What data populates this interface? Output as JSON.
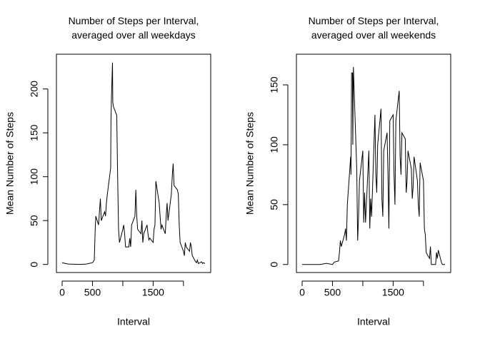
{
  "chart_data": [
    {
      "type": "line",
      "title": "Number of Steps per Interval,\naveraged over all weekdays",
      "x_label": "Interval",
      "y_label": "Mean Number of Steps",
      "color": "#000000",
      "x": [
        0,
        100,
        200,
        300,
        400,
        500,
        530,
        545,
        555,
        600,
        615,
        630,
        645,
        700,
        715,
        730,
        745,
        800,
        805,
        815,
        830,
        835,
        845,
        900,
        915,
        930,
        945,
        1000,
        1015,
        1030,
        1045,
        1100,
        1115,
        1130,
        1145,
        1200,
        1215,
        1230,
        1245,
        1300,
        1315,
        1330,
        1345,
        1400,
        1415,
        1430,
        1445,
        1500,
        1515,
        1530,
        1545,
        1600,
        1615,
        1630,
        1645,
        1700,
        1715,
        1730,
        1745,
        1800,
        1815,
        1830,
        1845,
        1900,
        1915,
        1930,
        1945,
        2000,
        2015,
        2030,
        2045,
        2100,
        2115,
        2130,
        2145,
        2200,
        2215,
        2230,
        2245,
        2300,
        2315,
        2330,
        2355
      ],
      "values": [
        2,
        0.5,
        0.3,
        0,
        0.5,
        2,
        5,
        40,
        55,
        45,
        60,
        75,
        50,
        60,
        55,
        70,
        80,
        110,
        165,
        195,
        230,
        185,
        180,
        170,
        100,
        40,
        25,
        40,
        45,
        35,
        20,
        20,
        30,
        20,
        45,
        55,
        85,
        55,
        40,
        35,
        50,
        25,
        35,
        45,
        35,
        28,
        30,
        25,
        40,
        45,
        95,
        70,
        55,
        40,
        45,
        35,
        55,
        70,
        50,
        80,
        100,
        115,
        90,
        85,
        80,
        45,
        25,
        15,
        10,
        25,
        20,
        15,
        25,
        20,
        10,
        3,
        2,
        5,
        1,
        3,
        1,
        2,
        1
      ],
      "xlim": [
        -94.2,
        2449.2
      ],
      "ylim": [
        -9.2,
        239.6
      ],
      "xticks": [
        0,
        500,
        {
          "value": 1000,
          "label": null
        },
        1500,
        {
          "value": 2000,
          "label": null
        }
      ],
      "yticks": [
        0,
        50,
        100,
        150,
        200
      ]
    },
    {
      "type": "line",
      "title": "Number of Steps per Interval,\naveraged over all weekends",
      "x_label": "Interval",
      "y_label": "Mean Number of Steps",
      "color": "#000000",
      "x": [
        0,
        100,
        200,
        300,
        400,
        500,
        530,
        600,
        615,
        630,
        645,
        700,
        715,
        730,
        745,
        800,
        805,
        815,
        830,
        835,
        845,
        900,
        915,
        930,
        945,
        1000,
        1015,
        1030,
        1045,
        1100,
        1115,
        1130,
        1145,
        1200,
        1215,
        1230,
        1245,
        1300,
        1315,
        1330,
        1345,
        1400,
        1415,
        1430,
        1445,
        1500,
        1515,
        1530,
        1545,
        1600,
        1615,
        1630,
        1645,
        1700,
        1715,
        1730,
        1745,
        1800,
        1815,
        1830,
        1845,
        1900,
        1915,
        1930,
        1945,
        2000,
        2015,
        2030,
        2045,
        2100,
        2115,
        2130,
        2145,
        2200,
        2215,
        2230,
        2245,
        2300,
        2315,
        2355
      ],
      "values": [
        0,
        0,
        0,
        0,
        1,
        0,
        2,
        3,
        10,
        20,
        15,
        25,
        30,
        20,
        50,
        90,
        75,
        160,
        160,
        100,
        165,
        80,
        20,
        40,
        70,
        95,
        35,
        60,
        35,
        95,
        30,
        55,
        40,
        125,
        75,
        60,
        100,
        130,
        55,
        40,
        95,
        110,
        75,
        30,
        120,
        125,
        75,
        50,
        120,
        145,
        90,
        75,
        110,
        105,
        60,
        70,
        95,
        80,
        55,
        65,
        90,
        70,
        50,
        40,
        85,
        70,
        30,
        25,
        10,
        5,
        15,
        0,
        0,
        0,
        10,
        5,
        12,
        1,
        0,
        0
      ],
      "xlim": [
        -94.2,
        2449.2
      ],
      "ylim": [
        -6.7,
        175.6
      ],
      "xticks": [
        0,
        500,
        {
          "value": 1000,
          "label": null
        },
        1500,
        {
          "value": 2000,
          "label": null
        }
      ],
      "yticks": [
        0,
        50,
        100,
        150
      ]
    }
  ]
}
